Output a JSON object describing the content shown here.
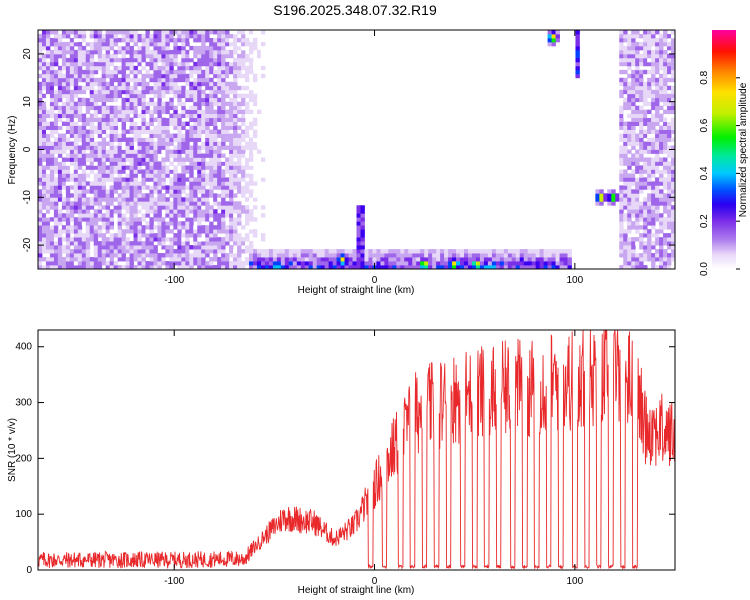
{
  "title": "S196.2025.348.07.32.R19",
  "colors": {
    "spectrogram_palette": [
      "#ffffff",
      "#e8d8f8",
      "#c9a6f0",
      "#9f66ea",
      "#7a2ee8",
      "#3a00f0",
      "#0040ff",
      "#00bfff",
      "#00e6a0",
      "#00f000",
      "#c8f000",
      "#ffe000",
      "#ff8000",
      "#ff0000",
      "#ff00a0"
    ],
    "snr_line": "#e8282a",
    "axis": "#000000"
  },
  "chart_data": [
    {
      "type": "heatmap",
      "panel": "top",
      "title": "S196.2025.348.07.32.R19",
      "xlabel": "Height of straight line (km)",
      "ylabel": "Frequency (Hz)",
      "xlim": [
        -168,
        150
      ],
      "ylim": [
        -25,
        25
      ],
      "xticks": [
        -100,
        0,
        100
      ],
      "xtick_labels": [
        "-100",
        "0",
        "100"
      ],
      "yticks": [
        -20,
        -10,
        0,
        10,
        20
      ],
      "ytick_labels": [
        "-20",
        "-10",
        "0",
        "10",
        "20"
      ],
      "colorbar": {
        "label": "Normalized spectral amplitude",
        "range": [
          0.0,
          1.0
        ],
        "ticks": [
          0.0,
          0.2,
          0.4,
          0.6,
          0.8
        ],
        "tick_labels": [
          "0.0",
          "0.2",
          "0.4",
          "0.6",
          "0.8"
        ]
      },
      "features": [
        {
          "desc": "broadband noise region",
          "x_range": [
            -168,
            -55
          ],
          "y_range": [
            -25,
            25
          ],
          "amplitude": 0.08
        },
        {
          "desc": "broadband noise region",
          "x_range": [
            122,
            150
          ],
          "y_range": [
            -25,
            25
          ],
          "amplitude": 0.07
        },
        {
          "desc": "low-frequency energy",
          "x_range": [
            -62,
            98
          ],
          "y_range": [
            -25,
            -21
          ],
          "amplitude": 0.45
        },
        {
          "desc": "peak",
          "x": -16,
          "y": -23,
          "amplitude": 0.8
        },
        {
          "desc": "peak",
          "x": 25,
          "y": -24,
          "amplitude": 0.85
        },
        {
          "desc": "peak",
          "x": 40,
          "y": -24,
          "amplitude": 0.85
        },
        {
          "desc": "peak",
          "x": 51,
          "y": -24,
          "amplitude": 0.8
        },
        {
          "desc": "peak",
          "x": 89,
          "y": 23.5,
          "amplitude": 0.85
        },
        {
          "desc": "peak",
          "x": 113,
          "y": -10,
          "amplitude": 0.8
        },
        {
          "desc": "peak",
          "x": 119,
          "y": -10,
          "amplitude": 0.75
        },
        {
          "desc": "narrow line",
          "x": 101,
          "y_range": [
            15,
            25
          ],
          "amplitude": 0.4
        },
        {
          "desc": "narrow line",
          "x": -7,
          "y_range": [
            -25,
            -12
          ],
          "amplitude": 0.35
        }
      ]
    },
    {
      "type": "line",
      "panel": "bottom",
      "xlabel": "Height of straight line (km)",
      "ylabel": "SNR (10 * v/v)",
      "xlim": [
        -168,
        150
      ],
      "ylim": [
        0,
        430
      ],
      "xticks": [
        -100,
        0,
        100
      ],
      "xtick_labels": [
        "-100",
        "0",
        "100"
      ],
      "yticks": [
        0,
        100,
        200,
        300,
        400
      ],
      "ytick_labels": [
        "0",
        "100",
        "200",
        "300",
        "400"
      ],
      "series": [
        {
          "name": "SNR",
          "envelope_x": [
            -168,
            -100,
            -65,
            -55,
            -45,
            -30,
            -20,
            -10,
            0,
            10,
            20,
            40,
            60,
            80,
            100,
            110,
            120,
            130,
            135,
            150
          ],
          "envelope_y": [
            18,
            18,
            20,
            60,
            95,
            85,
            55,
            80,
            150,
            220,
            280,
            310,
            320,
            330,
            340,
            350,
            370,
            330,
            260,
            240
          ],
          "dropouts_x": [
            -2,
            5,
            13,
            19,
            25,
            31,
            37,
            44,
            50,
            56,
            62,
            69,
            75,
            81,
            87,
            93,
            100,
            106,
            112,
            118,
            124,
            130
          ]
        }
      ]
    }
  ]
}
